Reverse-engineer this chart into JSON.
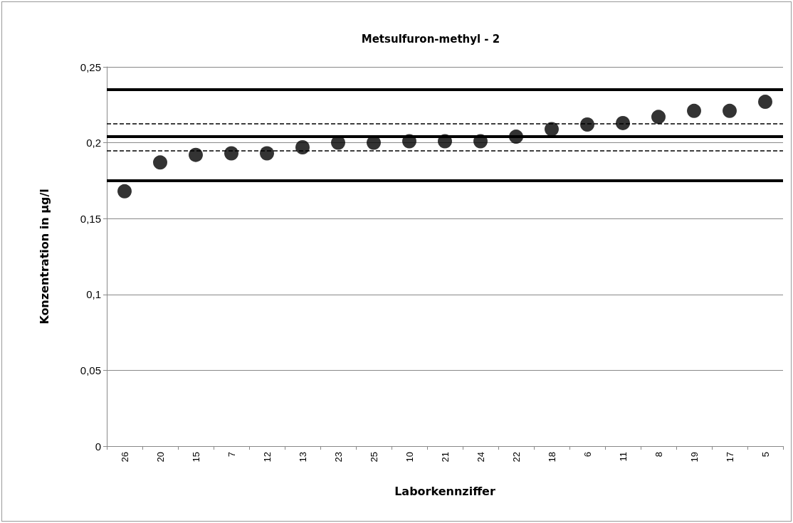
{
  "chart_data": {
    "type": "scatter",
    "title": "Metsulfuron-methyl - 2",
    "xlabel": "Laborkennziffer",
    "ylabel": "Konzentration in µg/l",
    "categories": [
      "26",
      "20",
      "15",
      "7",
      "12",
      "13",
      "23",
      "25",
      "10",
      "21",
      "24",
      "22",
      "18",
      "6",
      "11",
      "8",
      "19",
      "17",
      "5"
    ],
    "series": [
      {
        "color": "#000000",
        "values": [
          0.168,
          0.187,
          0.192,
          0.193,
          0.193,
          0.197,
          0.2,
          0.2,
          0.201,
          0.201,
          0.201,
          0.204,
          0.209,
          0.212,
          0.213,
          0.217,
          0.221,
          0.221,
          0.227
        ]
      }
    ],
    "ylim": [
      0,
      0.25
    ],
    "yticks": [
      {
        "value": 0,
        "label": "0"
      },
      {
        "value": 0.05,
        "label": "0,05"
      },
      {
        "value": 0.1,
        "label": "0,1"
      },
      {
        "value": 0.15,
        "label": "0,15"
      },
      {
        "value": 0.2,
        "label": "0,2"
      },
      {
        "value": 0.25,
        "label": "0,25"
      }
    ],
    "grid": "y",
    "marker": "circle",
    "ref_lines": [
      {
        "axis": "y",
        "value": 0.235,
        "color": "#000000",
        "line_style": "solid"
      },
      {
        "axis": "y",
        "value": 0.2125,
        "color": "#000000",
        "line_style": "dashed"
      },
      {
        "axis": "y",
        "value": 0.204,
        "color": "#000000",
        "line_style": "solid"
      },
      {
        "axis": "y",
        "value": 0.195,
        "color": "#000000",
        "line_style": "dashed"
      },
      {
        "axis": "y",
        "value": 0.175,
        "color": "#000000",
        "line_style": "solid"
      }
    ]
  }
}
